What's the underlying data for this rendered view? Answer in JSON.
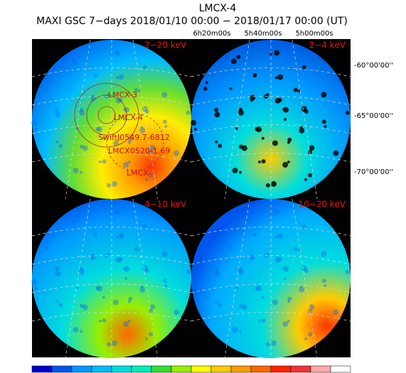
{
  "header": {
    "title": "LMCX-4",
    "subtitle": "MAXI GSC 7−days 2018/01/10 00:00 − 2018/01/17 00:00 (UT)"
  },
  "ra_labels": [
    "6h20m00s",
    "5h40m00s",
    "5h00m00s"
  ],
  "dec_labels": [
    "-60°00'00''",
    "-65°00'00''",
    "-70°00'00''"
  ],
  "panels": [
    {
      "label": "2−20 keV"
    },
    {
      "label": "2−4 keV"
    },
    {
      "label": "4−10 keV"
    },
    {
      "label": "10−20 keV"
    }
  ],
  "sources": [
    "LMCX-3",
    "LMCX-4",
    "SwiftJ0549.7-6812",
    "LMCX0520-1.69",
    "LMCX-"
  ]
}
